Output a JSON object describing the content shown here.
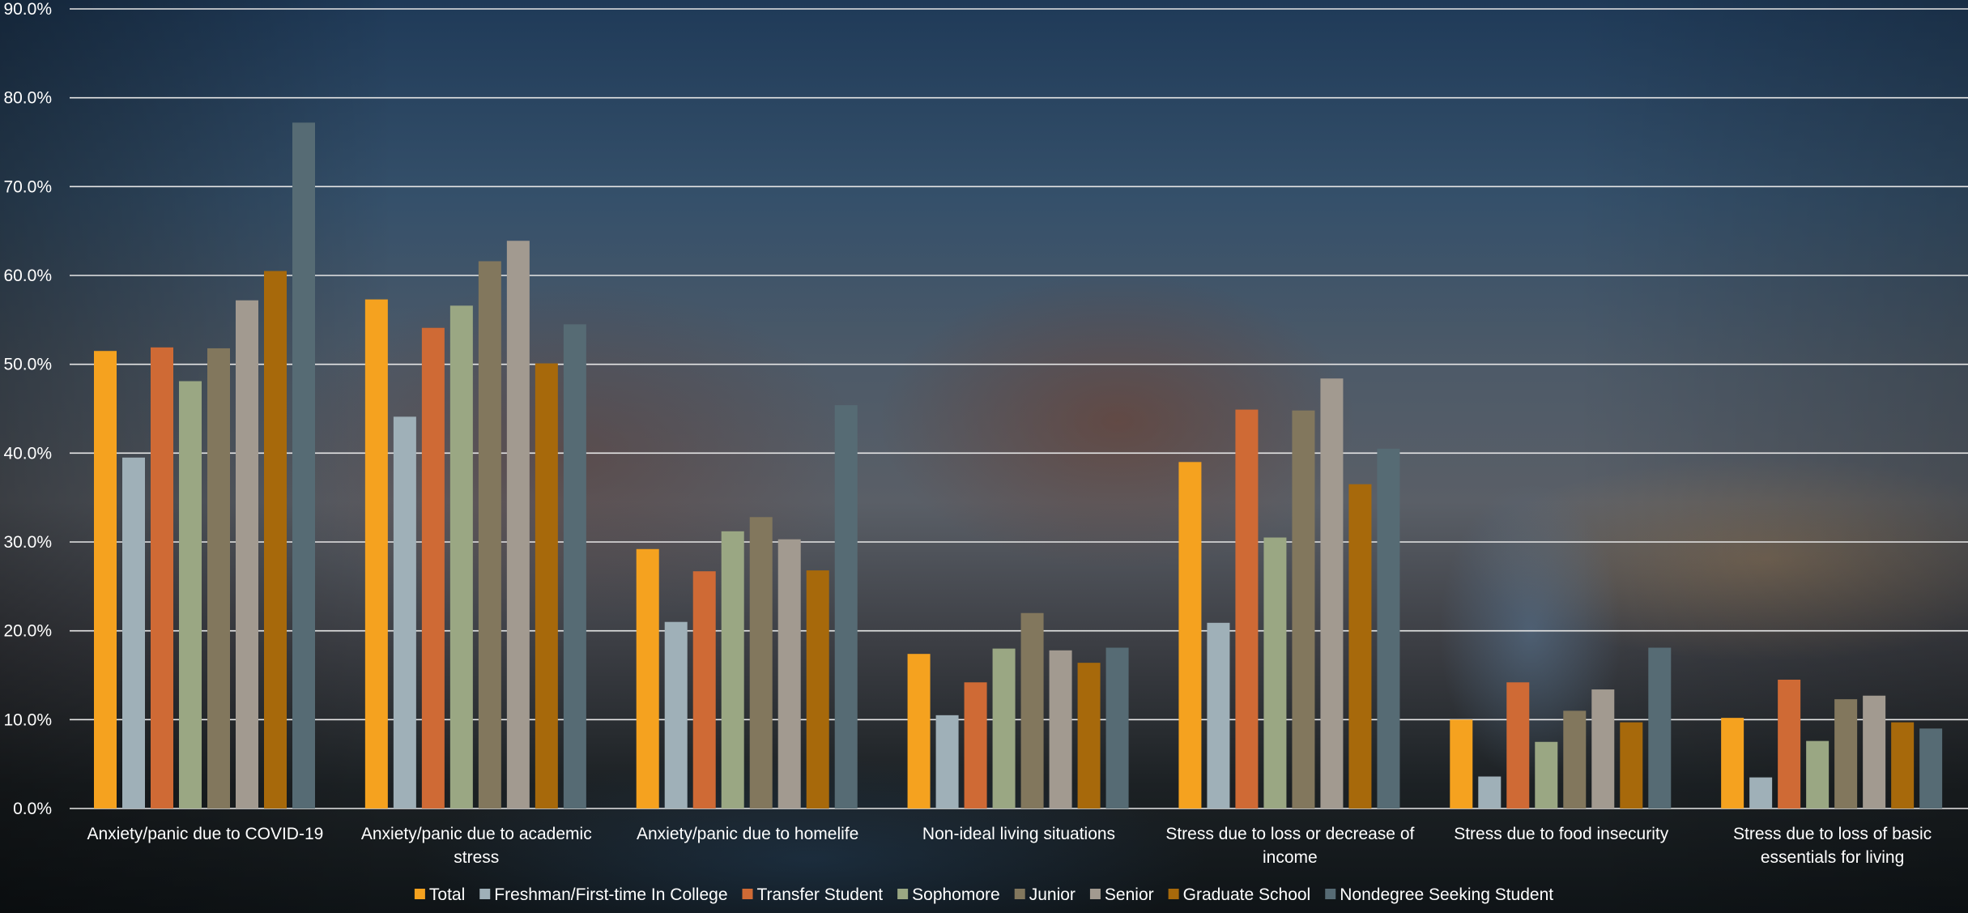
{
  "chart_data": {
    "type": "bar",
    "title": "",
    "xlabel": "",
    "ylabel": "",
    "ylim": [
      0,
      90
    ],
    "y_ticks": [
      "0.0%",
      "10.0%",
      "20.0%",
      "30.0%",
      "40.0%",
      "50.0%",
      "60.0%",
      "70.0%",
      "80.0%",
      "90.0%"
    ],
    "grid": true,
    "legend_position": "bottom",
    "categories": [
      [
        "Anxiety/panic due to COVID-19"
      ],
      [
        "Anxiety/panic due to academic",
        "stress"
      ],
      [
        "Anxiety/panic due to homelife"
      ],
      [
        "Non-ideal living situations"
      ],
      [
        "Stress due to loss or decrease of",
        "income"
      ],
      [
        "Stress due to food insecurity"
      ],
      [
        "Stress due to loss of basic",
        "essentials for living"
      ]
    ],
    "series": [
      {
        "name": "Total",
        "color": "#f5a21f",
        "values": [
          51.5,
          57.3,
          29.2,
          17.4,
          39.0,
          10.0,
          10.2
        ]
      },
      {
        "name": "Freshman/First-time In College",
        "color": "#9fb0b8",
        "values": [
          39.5,
          44.1,
          21.0,
          10.5,
          20.9,
          3.6,
          3.5
        ]
      },
      {
        "name": "Transfer Student",
        "color": "#cf6a35",
        "values": [
          51.9,
          54.1,
          26.7,
          14.2,
          44.9,
          14.2,
          14.5
        ]
      },
      {
        "name": "Sophomore",
        "color": "#9aa783",
        "values": [
          48.1,
          56.6,
          31.2,
          18.0,
          30.5,
          7.5,
          7.6
        ]
      },
      {
        "name": "Junior",
        "color": "#82775d",
        "values": [
          51.8,
          61.6,
          32.8,
          22.0,
          44.8,
          11.0,
          12.3
        ]
      },
      {
        "name": "Senior",
        "color": "#a29a90",
        "values": [
          57.2,
          63.9,
          30.3,
          17.8,
          48.4,
          13.4,
          12.7
        ]
      },
      {
        "name": "Graduate School",
        "color": "#a7690b",
        "values": [
          60.5,
          50.1,
          26.8,
          16.4,
          36.5,
          9.7,
          9.7
        ]
      },
      {
        "name": "Nondegree Seeking Student",
        "color": "#566b74",
        "values": [
          77.2,
          54.5,
          45.4,
          18.1,
          40.5,
          18.1,
          9.0
        ]
      }
    ]
  }
}
